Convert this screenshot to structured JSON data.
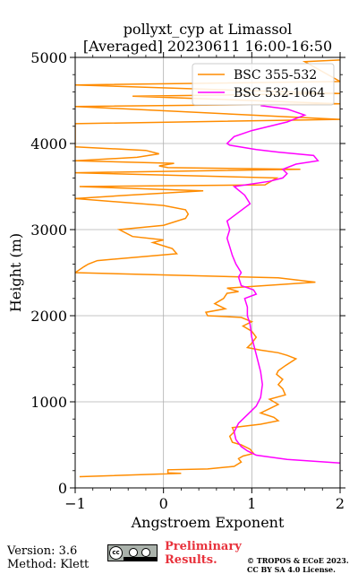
{
  "title_line1": "pollyxt_cyp at Limassol",
  "title_line2": "[Averaged] 20230611 16:00-16:50",
  "footer": {
    "version": "Version: 3.6",
    "method": "Method: Klett",
    "preliminary": [
      "Preliminary",
      "Results."
    ],
    "copyright": [
      "© TROPOS & ECoE 2023.",
      "CC BY SA 4.0 License."
    ],
    "license_badge_icon": "cc-by-sa-icon"
  },
  "chart_data": {
    "type": "line",
    "xlabel": "Angstroem Exponent",
    "ylabel": "Height (m)",
    "xlim": [
      -1,
      2
    ],
    "ylim": [
      0,
      5000
    ],
    "xticks": [
      -1,
      0,
      1,
      2
    ],
    "xtick_labels": [
      "−1",
      "0",
      "1",
      "2"
    ],
    "yticks": [
      0,
      1000,
      2000,
      3000,
      4000,
      5000
    ],
    "ytick_labels": [
      "0",
      "1000",
      "2000",
      "3000",
      "4000",
      "5000"
    ],
    "grid": true,
    "legend_position": "top-right",
    "series": [
      {
        "name": "BSC 355-532",
        "color": "#ff8c00",
        "points": [
          [
            -0.95,
            130
          ],
          [
            0.2,
            170
          ],
          [
            0.05,
            175
          ],
          [
            0.05,
            210
          ],
          [
            0.5,
            220
          ],
          [
            0.8,
            250
          ],
          [
            0.88,
            300
          ],
          [
            0.85,
            340
          ],
          [
            0.9,
            370
          ],
          [
            1.02,
            400
          ],
          [
            0.98,
            450
          ],
          [
            0.88,
            500
          ],
          [
            0.78,
            530
          ],
          [
            0.75,
            600
          ],
          [
            0.8,
            650
          ],
          [
            0.78,
            700
          ],
          [
            1.1,
            740
          ],
          [
            1.3,
            780
          ],
          [
            1.25,
            820
          ],
          [
            1.1,
            870
          ],
          [
            1.2,
            920
          ],
          [
            1.3,
            970
          ],
          [
            1.2,
            1030
          ],
          [
            1.38,
            1080
          ],
          [
            1.35,
            1150
          ],
          [
            1.3,
            1200
          ],
          [
            1.35,
            1260
          ],
          [
            1.28,
            1320
          ],
          [
            1.3,
            1360
          ],
          [
            1.38,
            1420
          ],
          [
            1.5,
            1500
          ],
          [
            1.4,
            1540
          ],
          [
            1.3,
            1570
          ],
          [
            1.1,
            1600
          ],
          [
            0.95,
            1630
          ],
          [
            1.0,
            1680
          ],
          [
            1.05,
            1750
          ],
          [
            1.0,
            1820
          ],
          [
            0.9,
            1880
          ],
          [
            1.0,
            1930
          ],
          [
            0.88,
            1980
          ],
          [
            0.5,
            2000
          ],
          [
            0.48,
            2040
          ],
          [
            0.7,
            2080
          ],
          [
            0.58,
            2140
          ],
          [
            0.68,
            2200
          ],
          [
            0.72,
            2260
          ],
          [
            0.85,
            2280
          ],
          [
            0.72,
            2320
          ],
          [
            1.72,
            2390
          ],
          [
            1.3,
            2440
          ],
          [
            -1.0,
            2500
          ],
          [
            -0.9,
            2570
          ],
          [
            -0.85,
            2600
          ],
          [
            -0.75,
            2640
          ],
          [
            0.15,
            2720
          ],
          [
            0.1,
            2780
          ],
          [
            -0.12,
            2850
          ],
          [
            0.0,
            2880
          ],
          [
            -0.35,
            2920
          ],
          [
            -0.5,
            3000
          ],
          [
            0.0,
            3050
          ],
          [
            0.25,
            3130
          ],
          [
            0.28,
            3180
          ],
          [
            0.25,
            3230
          ],
          [
            0.0,
            3280
          ],
          [
            -1.0,
            3360
          ],
          [
            -0.4,
            3400
          ],
          [
            0.45,
            3450
          ],
          [
            -0.95,
            3500
          ],
          [
            1.15,
            3520
          ],
          [
            1.28,
            3600
          ],
          [
            -1.0,
            3660
          ],
          [
            1.55,
            3700
          ],
          [
            0.05,
            3720
          ],
          [
            -0.05,
            3740
          ],
          [
            0.12,
            3770
          ],
          [
            -1.0,
            3800
          ],
          [
            -0.3,
            3840
          ],
          [
            -0.05,
            3880
          ],
          [
            -0.2,
            3920
          ],
          [
            -1.0,
            3960
          ],
          [
            -1.0,
            4230
          ],
          [
            2.0,
            4280
          ],
          [
            -1.0,
            4430
          ],
          [
            2.0,
            4460
          ],
          [
            -0.35,
            4550
          ],
          [
            2.0,
            4580
          ],
          [
            -1.0,
            4680
          ],
          [
            2.0,
            4720
          ],
          [
            1.6,
            4950
          ],
          [
            2.0,
            4970
          ]
        ]
      },
      {
        "name": "BSC 532-1064",
        "color": "#ff00ff",
        "points": [
          [
            2.0,
            290
          ],
          [
            1.4,
            330
          ],
          [
            1.05,
            380
          ],
          [
            0.95,
            430
          ],
          [
            0.88,
            480
          ],
          [
            0.82,
            560
          ],
          [
            0.8,
            650
          ],
          [
            0.85,
            750
          ],
          [
            0.95,
            850
          ],
          [
            1.05,
            950
          ],
          [
            1.1,
            1050
          ],
          [
            1.12,
            1200
          ],
          [
            1.1,
            1350
          ],
          [
            1.05,
            1550
          ],
          [
            1.0,
            1750
          ],
          [
            0.98,
            1900
          ],
          [
            0.95,
            2000
          ],
          [
            0.95,
            2100
          ],
          [
            0.92,
            2200
          ],
          [
            1.05,
            2250
          ],
          [
            1.02,
            2300
          ],
          [
            0.88,
            2350
          ],
          [
            0.85,
            2450
          ],
          [
            0.88,
            2500
          ],
          [
            0.82,
            2600
          ],
          [
            0.78,
            2700
          ],
          [
            0.75,
            2800
          ],
          [
            0.72,
            2900
          ],
          [
            0.75,
            3000
          ],
          [
            0.72,
            3100
          ],
          [
            0.85,
            3200
          ],
          [
            0.98,
            3300
          ],
          [
            0.92,
            3400
          ],
          [
            0.8,
            3500
          ],
          [
            1.2,
            3560
          ],
          [
            1.35,
            3600
          ],
          [
            1.4,
            3650
          ],
          [
            1.35,
            3700
          ],
          [
            1.5,
            3760
          ],
          [
            1.75,
            3800
          ],
          [
            1.7,
            3860
          ],
          [
            1.3,
            3900
          ],
          [
            1.05,
            3930
          ],
          [
            0.75,
            3980
          ],
          [
            0.72,
            4000
          ],
          [
            0.8,
            4080
          ],
          [
            1.0,
            4150
          ],
          [
            1.4,
            4250
          ],
          [
            1.6,
            4330
          ],
          [
            1.4,
            4400
          ],
          [
            1.1,
            4440
          ]
        ]
      }
    ]
  }
}
